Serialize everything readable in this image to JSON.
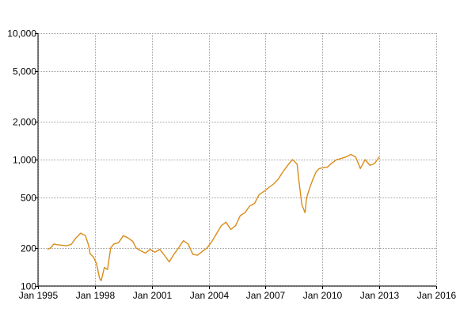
{
  "chart_data": {
    "type": "line",
    "title": "",
    "xlabel": "",
    "ylabel": "",
    "y_scale": "log",
    "ylim": [
      100,
      10000
    ],
    "xlim": [
      "1995-01",
      "2016-01"
    ],
    "grid": true,
    "legend": "none",
    "x_tick_labels": [
      "Jan 1995",
      "Jan 1998",
      "Jan 2001",
      "Jan 2004",
      "Jan 2007",
      "Jan 2010",
      "Jan 2013",
      "Jan 2016"
    ],
    "y_tick_labels": [
      "100",
      "200",
      "500",
      "1,000",
      "2,000",
      "5,000",
      "10,000"
    ],
    "y_ticks": [
      100,
      200,
      500,
      1000,
      2000,
      5000,
      10000
    ],
    "colors": {
      "series": "#d98c1a",
      "grid": "#a0a0a0",
      "axis": "#000000"
    },
    "series": [
      {
        "x": [
          "1995-07",
          "1995-09",
          "1995-11",
          "1996-01",
          "1996-04",
          "1996-07",
          "1996-10",
          "1997-01",
          "1997-04",
          "1997-07",
          "1997-09",
          "1997-10",
          "1997-12",
          "1998-02",
          "1998-04",
          "1998-05",
          "1998-07",
          "1998-09",
          "1998-11",
          "1999-01",
          "1999-04",
          "1999-07",
          "1999-10",
          "2000-01",
          "2000-03",
          "2000-06",
          "2000-09",
          "2000-12",
          "2001-03",
          "2001-06",
          "2001-09",
          "2001-12",
          "2002-03",
          "2002-06",
          "2002-09",
          "2002-12",
          "2003-03",
          "2003-06",
          "2003-09",
          "2003-12",
          "2004-03",
          "2004-06",
          "2004-09",
          "2004-12",
          "2005-03",
          "2005-06",
          "2005-09",
          "2005-12",
          "2006-03",
          "2006-06",
          "2006-09",
          "2006-12",
          "2007-03",
          "2007-06",
          "2007-09",
          "2007-12",
          "2008-03",
          "2008-06",
          "2008-09",
          "2008-10",
          "2008-12",
          "2009-02",
          "2009-03",
          "2009-05",
          "2009-07",
          "2009-09",
          "2009-11",
          "2010-01",
          "2010-04",
          "2010-07",
          "2010-10",
          "2011-01",
          "2011-04",
          "2011-07",
          "2011-10",
          "2012-01",
          "2012-04",
          "2012-07",
          "2012-10",
          "2013-01"
        ],
        "values": [
          195,
          200,
          215,
          212,
          210,
          208,
          213,
          240,
          262,
          250,
          210,
          180,
          170,
          150,
          115,
          110,
          140,
          135,
          200,
          215,
          220,
          250,
          240,
          225,
          200,
          190,
          182,
          195,
          185,
          195,
          175,
          155,
          178,
          200,
          228,
          215,
          178,
          175,
          188,
          200,
          225,
          260,
          300,
          320,
          280,
          300,
          360,
          380,
          430,
          450,
          530,
          560,
          600,
          640,
          700,
          800,
          900,
          1000,
          920,
          700,
          440,
          380,
          500,
          600,
          700,
          800,
          850,
          860,
          870,
          940,
          1000,
          1020,
          1050,
          1100,
          1050,
          850,
          1000,
          900,
          930,
          1050
        ]
      }
    ]
  }
}
